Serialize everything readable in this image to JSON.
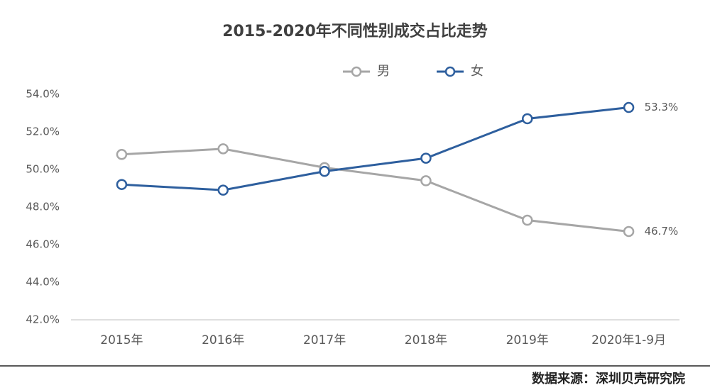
{
  "chart_data": {
    "type": "line",
    "title": "2015-2020年不同性别成交占比走势",
    "categories": [
      "2015年",
      "2016年",
      "2017年",
      "2018年",
      "2019年",
      "2020年1-9月"
    ],
    "series": [
      {
        "name": "男",
        "color": "#a6a6a6",
        "values": [
          50.8,
          51.1,
          50.1,
          49.4,
          47.3,
          46.7
        ],
        "value_labels": [
          null,
          null,
          null,
          null,
          null,
          "46.7%"
        ]
      },
      {
        "name": "女",
        "color": "#2e5f9e",
        "values": [
          49.2,
          48.9,
          49.9,
          50.6,
          52.7,
          53.3
        ],
        "value_labels": [
          null,
          null,
          null,
          null,
          null,
          "53.3%"
        ]
      }
    ],
    "ylim": [
      42,
      54
    ],
    "yticks": [
      {
        "value": 42,
        "label": "42.0%"
      },
      {
        "value": 44,
        "label": "44.0%"
      },
      {
        "value": 46,
        "label": "46.0%"
      },
      {
        "value": 48,
        "label": "48.0%"
      },
      {
        "value": 50,
        "label": "50.0%"
      },
      {
        "value": 52,
        "label": "52.0%"
      },
      {
        "value": 54,
        "label": "54.0%"
      }
    ],
    "grid": false,
    "legend": "top",
    "source": "数据来源：深圳贝壳研究院"
  }
}
